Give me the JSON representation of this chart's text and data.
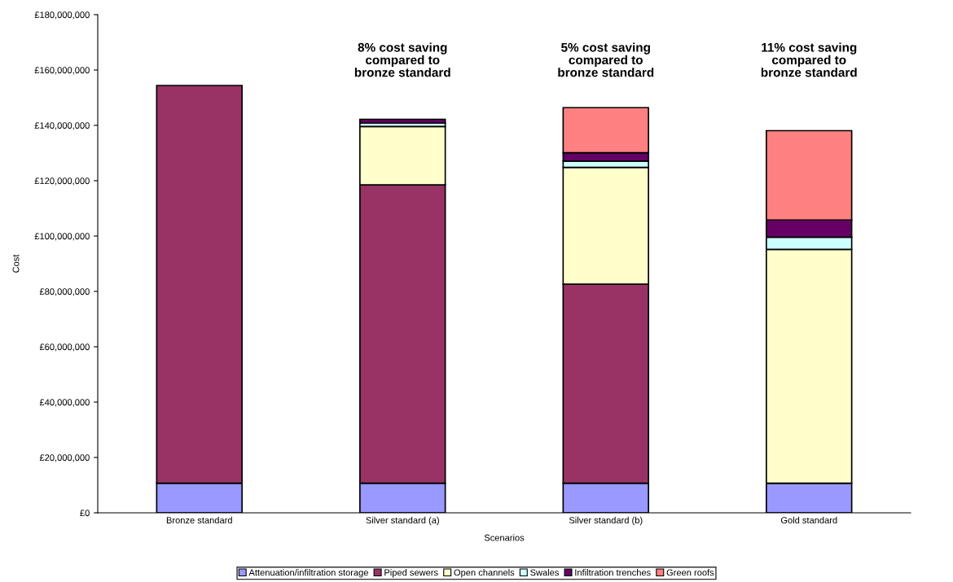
{
  "chart_data": {
    "type": "bar",
    "stacked": true,
    "xlabel": "Scenarios",
    "ylabel": "Cost",
    "categories": [
      "Bronze standard",
      "Silver standard (a)",
      "Silver standard (b)",
      "Gold standard"
    ],
    "series": [
      {
        "name": "Attenuation/infiltration storage",
        "color": "#9999ff",
        "values": [
          10700000,
          10700000,
          10700000,
          10700000
        ]
      },
      {
        "name": "Piped sewers",
        "color": "#993366",
        "values": [
          143700000,
          107800000,
          71900000,
          null
        ]
      },
      {
        "name": "Open channels",
        "color": "#ffffcc",
        "values": [
          null,
          21100000,
          42200000,
          84500000
        ]
      },
      {
        "name": "Swales",
        "color": "#ccffff",
        "values": [
          null,
          1200000,
          2300000,
          4400000
        ]
      },
      {
        "name": "Infiltration trenches",
        "color": "#660066",
        "values": [
          null,
          1400000,
          3000000,
          6200000
        ]
      },
      {
        "name": "Green roofs",
        "color": "#ff8080",
        "values": [
          null,
          null,
          16300000,
          32300000
        ]
      }
    ],
    "ylim": [
      0,
      180000000
    ],
    "yticks": [
      {
        "value": 0,
        "label": "£0"
      },
      {
        "value": 20000000,
        "label": "£20,000,000"
      },
      {
        "value": 40000000,
        "label": "£40,000,000"
      },
      {
        "value": 60000000,
        "label": "£60,000,000"
      },
      {
        "value": 80000000,
        "label": "£80,000,000"
      },
      {
        "value": 100000000,
        "label": "£100,000,000"
      },
      {
        "value": 120000000,
        "label": "£120,000,000"
      },
      {
        "value": 140000000,
        "label": "£140,000,000"
      },
      {
        "value": 160000000,
        "label": "£160,000,000"
      },
      {
        "value": 180000000,
        "label": "£180,000,000"
      }
    ],
    "annotations": [
      "8% cost saving\ncompared to\nbronze standard",
      "5% cost saving\ncompared to\nbronze standard",
      "11% cost saving\ncompared to\nbronze standard"
    ],
    "grid": false,
    "legend": "bottom"
  }
}
